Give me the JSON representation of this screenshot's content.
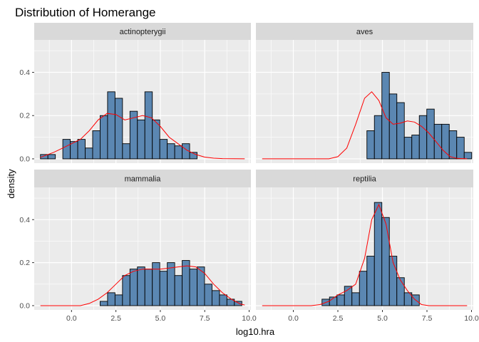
{
  "chart_data": {
    "type": "histogram-facet",
    "title": "Distribution of Homerange",
    "xlabel": "log10.hra",
    "ylabel": "density",
    "xlim": [
      -2.1,
      10.1
    ],
    "ylim": [
      -0.02,
      0.55
    ],
    "x_ticks": [
      0,
      2.5,
      5,
      7.5,
      10
    ],
    "x_tick_labels": [
      "0.0",
      "2.5",
      "5.0",
      "7.5",
      "10.0"
    ],
    "y_ticks": [
      0,
      0.2,
      0.4
    ],
    "y_tick_labels": [
      "0.0",
      "0.2",
      "0.4"
    ],
    "grid": true,
    "bar_color": "#5b87b2",
    "bar_outline": "#000000",
    "density_color": "#ff0000",
    "bin_width": 0.42,
    "bin_start": -1.75,
    "bin_count": 28,
    "panels": [
      {
        "name": "actinopterygii",
        "density_range": [
          -1.75,
          9.75
        ],
        "counts": [
          0.02,
          0.02,
          0.0,
          0.09,
          0.08,
          0.09,
          0.05,
          0.13,
          0.2,
          0.31,
          0.28,
          0.07,
          0.22,
          0.18,
          0.31,
          0.18,
          0.09,
          0.07,
          0.06,
          0.07,
          0.03,
          0.0,
          0.0,
          0.0,
          0.0,
          0.0,
          0.0,
          0.0
        ],
        "density": [
          [
            -1.75,
            0.007
          ],
          [
            -1.0,
            0.03
          ],
          [
            -0.5,
            0.05
          ],
          [
            0.0,
            0.07
          ],
          [
            0.5,
            0.09
          ],
          [
            1.0,
            0.13
          ],
          [
            1.5,
            0.18
          ],
          [
            2.0,
            0.21
          ],
          [
            2.5,
            0.205
          ],
          [
            3.0,
            0.18
          ],
          [
            3.5,
            0.19
          ],
          [
            4.0,
            0.2
          ],
          [
            4.5,
            0.19
          ],
          [
            5.0,
            0.15
          ],
          [
            5.5,
            0.1
          ],
          [
            6.0,
            0.07
          ],
          [
            6.5,
            0.04
          ],
          [
            7.0,
            0.02
          ],
          [
            7.5,
            0.008
          ],
          [
            8.0,
            0.003
          ],
          [
            8.5,
            0.001
          ],
          [
            9.75,
            0.0
          ]
        ]
      },
      {
        "name": "aves",
        "density_range": [
          -1.75,
          9.75
        ],
        "counts": [
          0,
          0,
          0,
          0,
          0,
          0,
          0,
          0,
          0,
          0,
          0,
          0,
          0,
          0,
          0.13,
          0.2,
          0.4,
          0.3,
          0.26,
          0.1,
          0.11,
          0.2,
          0.23,
          0.16,
          0.16,
          0.13,
          0.1,
          0.03
        ],
        "density": [
          [
            -1.75,
            0.0
          ],
          [
            2.0,
            0.0
          ],
          [
            2.5,
            0.01
          ],
          [
            3.0,
            0.05
          ],
          [
            3.5,
            0.16
          ],
          [
            4.0,
            0.28
          ],
          [
            4.4,
            0.31
          ],
          [
            4.8,
            0.27
          ],
          [
            5.2,
            0.19
          ],
          [
            5.6,
            0.16
          ],
          [
            6.0,
            0.165
          ],
          [
            6.4,
            0.175
          ],
          [
            6.8,
            0.17
          ],
          [
            7.2,
            0.15
          ],
          [
            7.6,
            0.12
          ],
          [
            8.0,
            0.08
          ],
          [
            8.4,
            0.04
          ],
          [
            8.8,
            0.01
          ],
          [
            9.2,
            0.002
          ],
          [
            9.75,
            0.0
          ]
        ]
      },
      {
        "name": "mammalia",
        "density_range": [
          -1.75,
          9.75
        ],
        "counts": [
          0,
          0,
          0,
          0,
          0,
          0,
          0,
          0,
          0.02,
          0.06,
          0.05,
          0.14,
          0.17,
          0.18,
          0.17,
          0.2,
          0.16,
          0.2,
          0.14,
          0.21,
          0.17,
          0.18,
          0.1,
          0.07,
          0.05,
          0.03,
          0.02,
          0.0
        ],
        "density": [
          [
            -1.75,
            0.0
          ],
          [
            0.5,
            0.0
          ],
          [
            1.0,
            0.01
          ],
          [
            1.5,
            0.03
          ],
          [
            2.0,
            0.06
          ],
          [
            2.5,
            0.1
          ],
          [
            3.0,
            0.14
          ],
          [
            3.5,
            0.16
          ],
          [
            4.0,
            0.17
          ],
          [
            4.5,
            0.17
          ],
          [
            5.0,
            0.17
          ],
          [
            5.5,
            0.175
          ],
          [
            6.0,
            0.18
          ],
          [
            6.5,
            0.185
          ],
          [
            7.0,
            0.18
          ],
          [
            7.5,
            0.15
          ],
          [
            8.0,
            0.1
          ],
          [
            8.5,
            0.06
          ],
          [
            9.0,
            0.03
          ],
          [
            9.5,
            0.008
          ],
          [
            9.75,
            0.003
          ]
        ]
      },
      {
        "name": "reptilia",
        "density_range": [
          -1.75,
          9.75
        ],
        "counts": [
          0,
          0,
          0,
          0,
          0,
          0,
          0,
          0,
          0.03,
          0.04,
          0.05,
          0.09,
          0.06,
          0.16,
          0.23,
          0.48,
          0.41,
          0.23,
          0.13,
          0.06,
          0.05,
          0,
          0,
          0,
          0,
          0,
          0,
          0
        ],
        "density": [
          [
            -1.75,
            0.0
          ],
          [
            1.0,
            0.0
          ],
          [
            1.5,
            0.005
          ],
          [
            2.0,
            0.02
          ],
          [
            2.5,
            0.05
          ],
          [
            3.0,
            0.07
          ],
          [
            3.5,
            0.1
          ],
          [
            4.0,
            0.22
          ],
          [
            4.4,
            0.4
          ],
          [
            4.8,
            0.47
          ],
          [
            5.2,
            0.38
          ],
          [
            5.6,
            0.2
          ],
          [
            6.0,
            0.12
          ],
          [
            6.4,
            0.07
          ],
          [
            6.8,
            0.03
          ],
          [
            7.2,
            0.005
          ],
          [
            7.6,
            0.0
          ],
          [
            9.75,
            0.0
          ]
        ]
      }
    ]
  }
}
